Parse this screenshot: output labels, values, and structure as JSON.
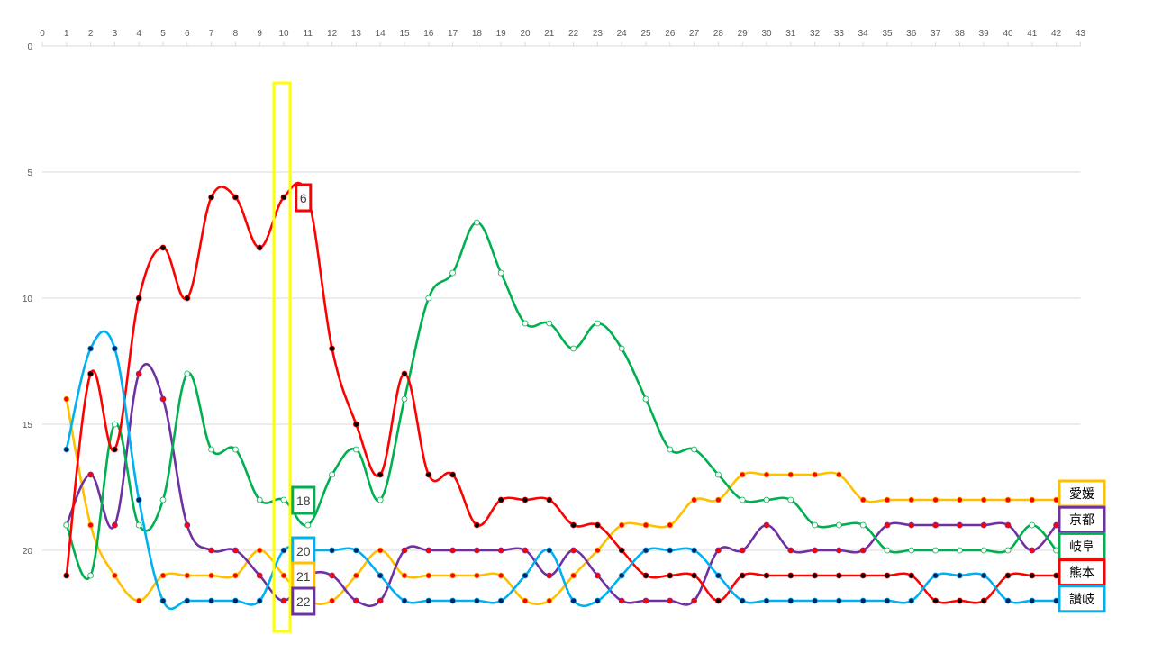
{
  "chart_data": {
    "type": "line",
    "title": "",
    "xlabel": "",
    "ylabel": "",
    "xlim": [
      0,
      43
    ],
    "ylim": [
      0,
      23
    ],
    "y_reversed": true,
    "x_ticks": [
      0,
      1,
      2,
      3,
      4,
      5,
      6,
      7,
      8,
      9,
      10,
      11,
      12,
      13,
      14,
      15,
      16,
      17,
      18,
      19,
      20,
      21,
      22,
      23,
      24,
      25,
      26,
      27,
      28,
      29,
      30,
      31,
      32,
      33,
      34,
      35,
      36,
      37,
      38,
      39,
      40,
      41,
      42,
      43
    ],
    "y_ticks": [
      0,
      5,
      10,
      15,
      20
    ],
    "grid": "horizontal",
    "x": [
      1,
      2,
      3,
      4,
      5,
      6,
      7,
      8,
      9,
      10,
      11,
      12,
      13,
      14,
      15,
      16,
      17,
      18,
      19,
      20,
      21,
      22,
      23,
      24,
      25,
      26,
      27,
      28,
      29,
      30,
      31,
      32,
      33,
      34,
      35,
      36,
      37,
      38,
      39,
      40,
      41,
      42
    ],
    "series": [
      {
        "name": "愛媛",
        "color": "#FFC000",
        "marker": "#FF0000",
        "values": [
          14,
          19,
          21,
          22,
          21,
          21,
          21,
          21,
          20,
          21,
          22,
          22,
          21,
          20,
          21,
          21,
          21,
          21,
          21,
          22,
          22,
          21,
          20,
          19,
          19,
          19,
          18,
          18,
          17,
          17,
          17,
          17,
          17,
          18,
          18,
          18,
          18,
          18,
          18,
          18,
          18,
          18
        ]
      },
      {
        "name": "京都",
        "color": "#7030A0",
        "marker": "#FF0000",
        "values": [
          19,
          17,
          19,
          13,
          14,
          19,
          20,
          20,
          21,
          22,
          21,
          21,
          22,
          22,
          20,
          20,
          20,
          20,
          20,
          20,
          21,
          20,
          21,
          22,
          22,
          22,
          22,
          20,
          20,
          19,
          20,
          20,
          20,
          20,
          19,
          19,
          19,
          19,
          19,
          19,
          20,
          19
        ]
      },
      {
        "name": "岐阜",
        "color": "#00B050",
        "marker": "#FFFFFF",
        "values": [
          19,
          21,
          15,
          19,
          18,
          13,
          16,
          16,
          18,
          18,
          19,
          17,
          16,
          18,
          14,
          10,
          9,
          7,
          9,
          11,
          11,
          12,
          11,
          12,
          14,
          16,
          16,
          17,
          18,
          18,
          18,
          19,
          19,
          19,
          20,
          20,
          20,
          20,
          20,
          20,
          19,
          20
        ]
      },
      {
        "name": "熊本",
        "color": "#FF0000",
        "marker": "#000000",
        "values": [
          21,
          13,
          16,
          10,
          8,
          10,
          6,
          6,
          8,
          6,
          6,
          12,
          15,
          17,
          13,
          17,
          17,
          19,
          18,
          18,
          18,
          19,
          19,
          20,
          21,
          21,
          21,
          22,
          21,
          21,
          21,
          21,
          21,
          21,
          21,
          21,
          22,
          22,
          22,
          21,
          21,
          21
        ]
      },
      {
        "name": "讃岐",
        "color": "#00B0F0",
        "marker": "#002060",
        "values": [
          16,
          12,
          12,
          18,
          22,
          22,
          22,
          22,
          22,
          20,
          20,
          20,
          20,
          21,
          22,
          22,
          22,
          22,
          22,
          21,
          20,
          22,
          22,
          21,
          20,
          20,
          20,
          21,
          22,
          22,
          22,
          22,
          22,
          22,
          22,
          22,
          21,
          21,
          21,
          22,
          22,
          22
        ]
      }
    ],
    "highlight": {
      "x": 10
    },
    "annotations": [
      {
        "x": 11,
        "y": 6,
        "text": "6",
        "color": "#FF0000"
      },
      {
        "x": 11,
        "y": 18,
        "text": "18",
        "color": "#00B050"
      },
      {
        "x": 11,
        "y": 20,
        "text": "20",
        "color": "#00B0F0"
      },
      {
        "x": 11,
        "y": 21,
        "text": "21",
        "color": "#FFC000"
      },
      {
        "x": 11,
        "y": 22,
        "text": "22",
        "color": "#7030A0"
      }
    ],
    "legend": {
      "placement": "right",
      "entries": [
        {
          "text": "愛媛",
          "color": "#FFC000"
        },
        {
          "text": "京都",
          "color": "#7030A0"
        },
        {
          "text": "岐阜",
          "color": "#00B050"
        },
        {
          "text": "熊本",
          "color": "#FF0000"
        },
        {
          "text": "讃岐",
          "color": "#00B0F0"
        }
      ]
    }
  }
}
